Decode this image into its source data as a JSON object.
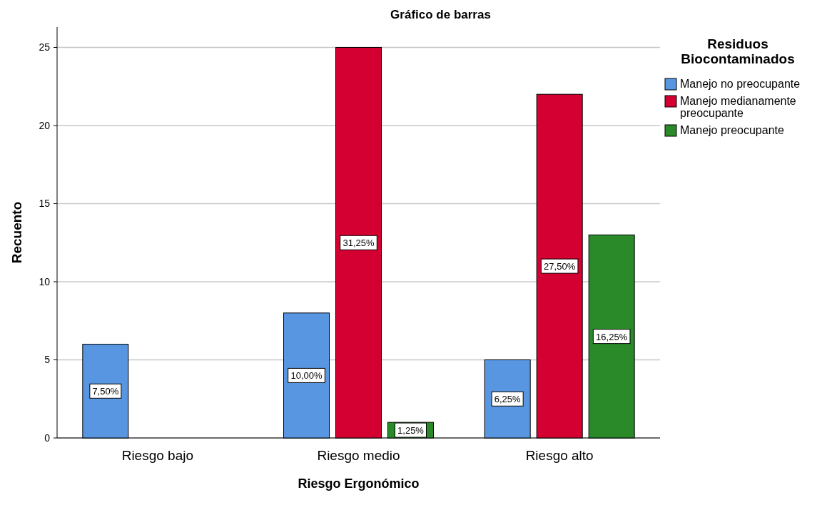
{
  "chart_data": {
    "type": "bar",
    "title": "Gráfico de barras",
    "xlabel": "Riesgo Ergonómico",
    "ylabel": "Recuento",
    "legend_title": "Residuos Biocontaminados",
    "categories": [
      "Riesgo bajo",
      "Riesgo medio",
      "Riesgo alto"
    ],
    "series": [
      {
        "name": "Manejo no preocupante",
        "color": "#5896e2",
        "values": [
          6,
          8,
          5
        ]
      },
      {
        "name": "Manejo medianamente preocupante",
        "color": "#d40032",
        "values": [
          null,
          25,
          22
        ]
      },
      {
        "name": "Manejo preocupante",
        "color": "#2a8a2a",
        "values": [
          null,
          1,
          13
        ]
      }
    ],
    "annotations": [
      "7,50%",
      "10,00%",
      "31,25%",
      "1,25%",
      "6,25%",
      "27,50%",
      "16,25%"
    ],
    "ylim": [
      0,
      26.3
    ],
    "yticks": [
      0,
      5,
      10,
      15,
      20,
      25
    ],
    "grid": "y",
    "legend": "top right"
  }
}
